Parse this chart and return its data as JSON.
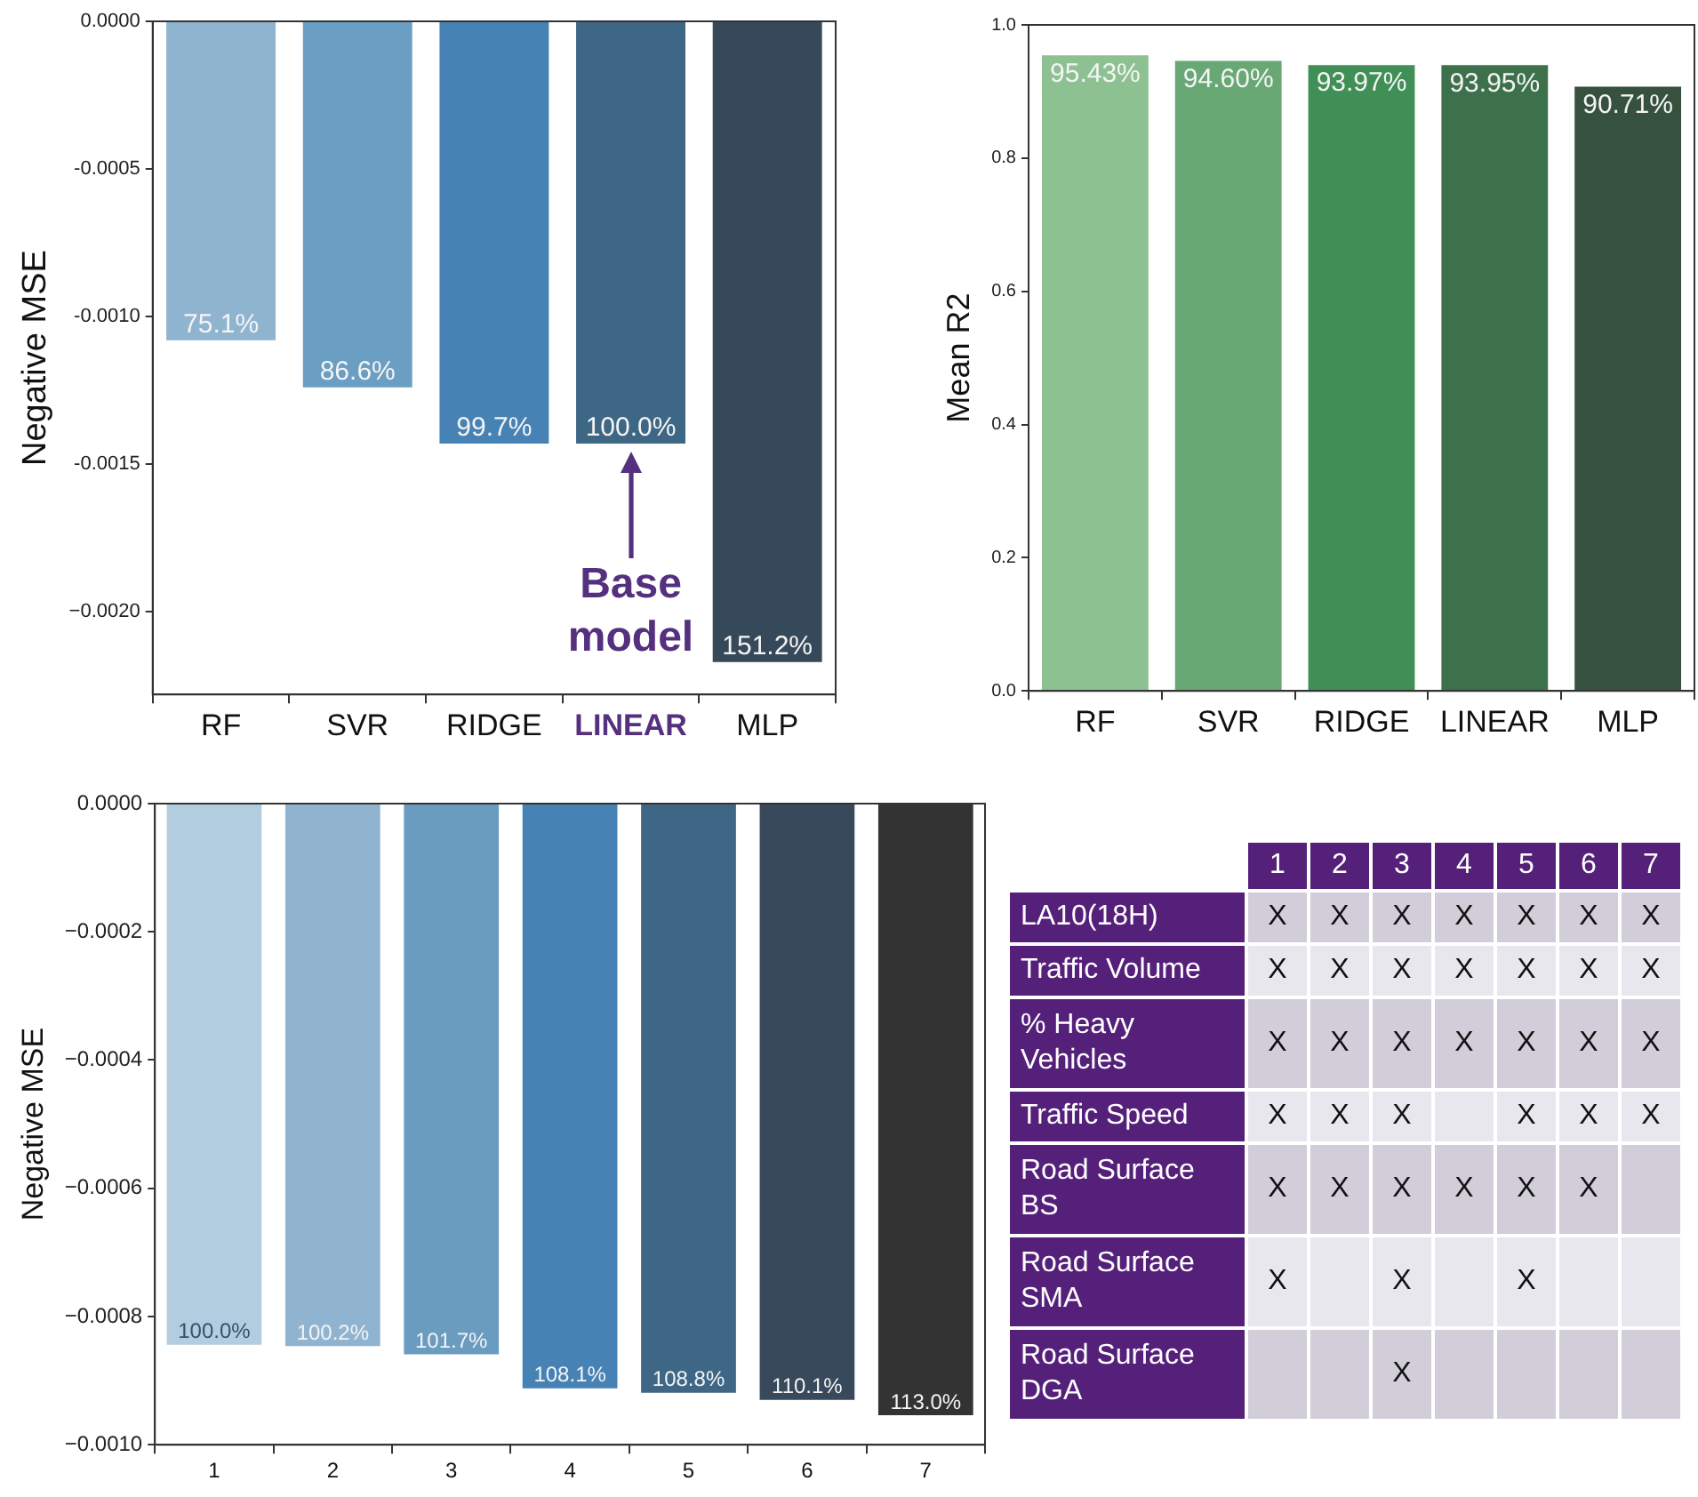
{
  "chart_data": [
    {
      "type": "bar",
      "ylabel": "Negative MSE",
      "categories": [
        "RF",
        "SVR",
        "RIDGE",
        "LINEAR",
        "MLP"
      ],
      "values": [
        -0.00108,
        -0.00124,
        -0.00143,
        -0.00143,
        -0.00217
      ],
      "colors": [
        "#8fb4d0",
        "#6a9ec2",
        "#4682b4",
        "#3e6685",
        "#36495a"
      ],
      "ylim": [
        -0.00228,
        0
      ],
      "yticks": [
        {
          "value": 0,
          "label": "0.0000"
        },
        {
          "value": -0.0005,
          "label": "-0.0005"
        },
        {
          "value": -0.001,
          "label": "-0.0010"
        },
        {
          "value": -0.0015,
          "label": "-0.0015"
        },
        {
          "value": -0.002,
          "label": "−0.0020"
        }
      ],
      "annotations": [
        {
          "text": "75.1%",
          "x": "RF",
          "y": -0.00108
        },
        {
          "text": "86.6%",
          "x": "SVR",
          "y": -0.00124
        },
        {
          "text": "99.7%",
          "x": "RIDGE",
          "y": -0.00143
        },
        {
          "text": "100.0%",
          "x": "LINEAR",
          "y": -0.00143
        },
        {
          "text": "151.2%",
          "x": "MLP",
          "y": -0.00217
        },
        {
          "text": "Base model",
          "x": "LINEAR",
          "y": -0.00143
        }
      ],
      "grid": false
    },
    {
      "type": "bar",
      "ylabel": "Mean R2",
      "categories": [
        "RF",
        "SVR",
        "RIDGE",
        "LINEAR",
        "MLP"
      ],
      "values": [
        0.9543,
        0.946,
        0.9397,
        0.9395,
        0.9071
      ],
      "colors": [
        "#8dc191",
        "#67a874",
        "#3f8f56",
        "#3d714c",
        "#36523f"
      ],
      "value_labels": [
        "95.43%",
        "94.60%",
        "93.97%",
        "93.95%",
        "90.71%"
      ],
      "ylim": [
        0,
        1
      ],
      "yticks": [
        {
          "value": 0,
          "label": "0.0"
        },
        {
          "value": 0.2,
          "label": "0.2"
        },
        {
          "value": 0.4,
          "label": "0.4"
        },
        {
          "value": 0.6,
          "label": "0.6"
        },
        {
          "value": 0.8,
          "label": "0.8"
        },
        {
          "value": 1,
          "label": "1.0"
        }
      ],
      "grid": false
    },
    {
      "type": "bar",
      "ylabel": "Negative MSE",
      "categories": [
        "1",
        "2",
        "3",
        "4",
        "5",
        "6",
        "7"
      ],
      "values": [
        -0.000844,
        -0.000846,
        -0.000859,
        -0.000912,
        -0.000919,
        -0.00093,
        -0.000954
      ],
      "colors": [
        "#b3cde0",
        "#90b4cf",
        "#6a9cc0",
        "#4682b4",
        "#3e6685",
        "#37495a",
        "#333333"
      ],
      "ylim": [
        -0.001,
        0
      ],
      "yticks": [
        {
          "value": 0,
          "label": "0.0000"
        },
        {
          "value": -0.0002,
          "label": "−0.0002"
        },
        {
          "value": -0.0004,
          "label": "−0.0004"
        },
        {
          "value": -0.0006,
          "label": "−0.0006"
        },
        {
          "value": -0.0008,
          "label": "−0.0008"
        },
        {
          "value": -0.001,
          "label": "−0.0010"
        }
      ],
      "annotations": [
        {
          "text": "100.0%",
          "x": "1",
          "y": -0.000844
        },
        {
          "text": "100.2%",
          "x": "2",
          "y": -0.000846
        },
        {
          "text": "101.7%",
          "x": "3",
          "y": -0.000859
        },
        {
          "text": "108.1%",
          "x": "4",
          "y": -0.000912
        },
        {
          "text": "108.8%",
          "x": "5",
          "y": -0.000919
        },
        {
          "text": "110.1%",
          "x": "6",
          "y": -0.00093
        },
        {
          "text": "113.0%",
          "x": "7",
          "y": -0.000954
        }
      ],
      "grid": false
    },
    {
      "type": "heatmap",
      "categories": [
        "1",
        "2",
        "3",
        "4",
        "5",
        "6",
        "7"
      ],
      "y_categories": [
        "LA10(18H)",
        "Traffic Volume",
        "% Heavy Vehicles",
        "Traffic Speed",
        "Road Surface BS",
        "Road Surface SMA",
        "Road Surface DGA"
      ],
      "cells": [
        [
          null,
          null,
          null,
          null,
          null,
          null,
          null
        ],
        [
          null,
          null,
          null,
          null,
          null,
          null,
          null
        ],
        [
          null,
          null,
          null,
          null,
          null,
          null,
          null
        ],
        [
          null,
          null,
          null,
          null,
          null,
          null,
          null
        ],
        [
          null,
          null,
          null,
          null,
          null,
          null,
          null
        ],
        [
          null,
          null,
          null,
          null,
          null,
          null,
          null
        ],
        [
          null,
          null,
          null,
          null,
          null,
          null,
          null
        ]
      ],
      "cell_labels": [
        [
          "X",
          "X",
          "X",
          "X",
          "X",
          "X",
          "X"
        ],
        [
          "X",
          "X",
          "X",
          "X",
          "X",
          "X",
          "X"
        ],
        [
          "X",
          "X",
          "X",
          "X",
          "X",
          "X",
          "X"
        ],
        [
          "X",
          "X",
          "X",
          null,
          "X",
          "X",
          "X"
        ],
        [
          "X",
          "X",
          "X",
          "X",
          "X",
          "X",
          null
        ],
        [
          "X",
          null,
          "X",
          null,
          "X",
          null,
          null
        ],
        [
          null,
          null,
          "X",
          null,
          null,
          null,
          null
        ]
      ]
    }
  ]
}
